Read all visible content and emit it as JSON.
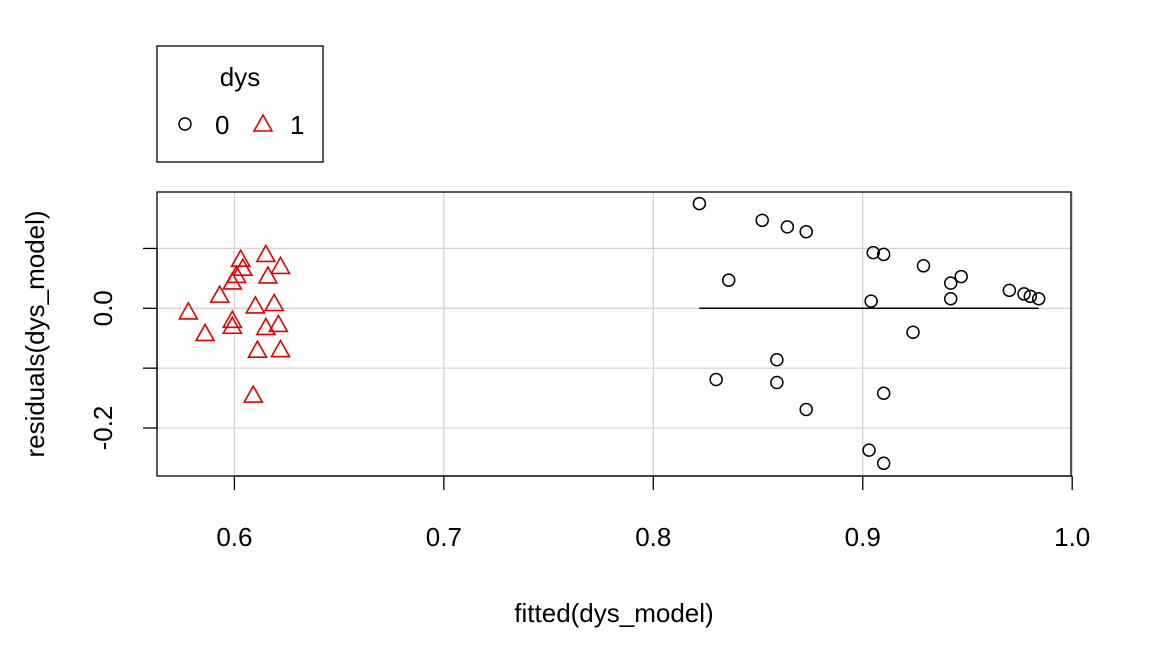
{
  "chart_data": {
    "type": "scatter",
    "title": "",
    "xlabel": "fitted(dys_model)",
    "ylabel": "residuals(dys_model)",
    "xlim": [
      0.565,
      1.0
    ],
    "ylim": [
      -0.28,
      0.19
    ],
    "xticks": [
      0.6,
      0.7,
      0.8,
      0.9,
      1.0
    ],
    "xtick_labels": [
      "0.6",
      "0.7",
      "0.8",
      "0.9",
      "1.0"
    ],
    "yticks": [
      -0.2,
      0.0
    ],
    "ytick_labels": [
      "-0.2",
      "0.0"
    ],
    "grid": true,
    "grid_x": [
      0.6,
      0.7,
      0.8,
      0.9,
      1.0
    ],
    "grid_y": [
      -0.2,
      -0.1,
      0.0,
      0.1
    ],
    "legend": {
      "title": "dys",
      "placement": "top-left, outside plot",
      "entries": [
        "0",
        "1"
      ]
    },
    "series": [
      {
        "name": "0",
        "marker": "circle",
        "color": "#000000",
        "points": [
          [
            0.822,
            0.175
          ],
          [
            0.852,
            0.147
          ],
          [
            0.864,
            0.136
          ],
          [
            0.873,
            0.128
          ],
          [
            0.905,
            0.093
          ],
          [
            0.91,
            0.09
          ],
          [
            0.929,
            0.071
          ],
          [
            0.947,
            0.053
          ],
          [
            0.942,
            0.042
          ],
          [
            0.97,
            0.03
          ],
          [
            0.977,
            0.024
          ],
          [
            0.98,
            0.02
          ],
          [
            0.984,
            0.016
          ],
          [
            0.942,
            0.016
          ],
          [
            0.904,
            0.012
          ],
          [
            0.836,
            0.047
          ],
          [
            0.924,
            -0.04
          ],
          [
            0.859,
            -0.086
          ],
          [
            0.83,
            -0.119
          ],
          [
            0.859,
            -0.124
          ],
          [
            0.91,
            -0.142
          ],
          [
            0.873,
            -0.169
          ],
          [
            0.903,
            -0.237
          ],
          [
            0.91,
            -0.259
          ]
        ]
      },
      {
        "name": "1",
        "marker": "triangle",
        "color": "#df0000",
        "points": [
          [
            0.615,
            0.09
          ],
          [
            0.603,
            0.082
          ],
          [
            0.604,
            0.067
          ],
          [
            0.622,
            0.07
          ],
          [
            0.601,
            0.055
          ],
          [
            0.616,
            0.054
          ],
          [
            0.599,
            0.044
          ],
          [
            0.593,
            0.022
          ],
          [
            0.619,
            0.008
          ],
          [
            0.61,
            0.004
          ],
          [
            0.578,
            -0.006
          ],
          [
            0.599,
            -0.02
          ],
          [
            0.599,
            -0.03
          ],
          [
            0.621,
            -0.027
          ],
          [
            0.615,
            -0.032
          ],
          [
            0.586,
            -0.042
          ],
          [
            0.611,
            -0.07
          ],
          [
            0.622,
            -0.069
          ],
          [
            0.609,
            -0.145
          ]
        ]
      }
    ],
    "reference_line": {
      "x": [
        0.822,
        0.984
      ],
      "y": 0.0,
      "color": "#000000"
    }
  }
}
